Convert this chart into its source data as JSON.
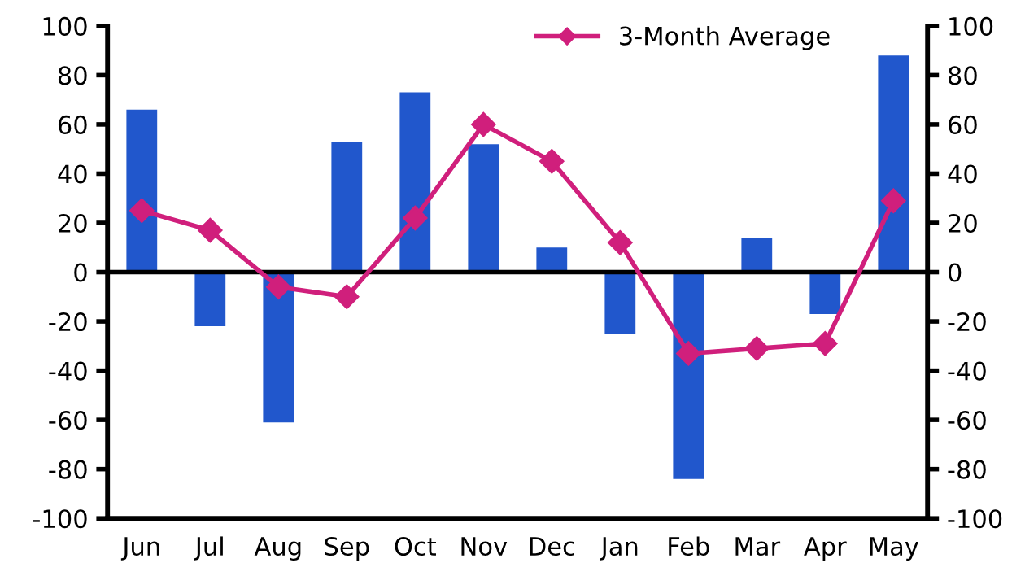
{
  "chart_data": {
    "type": "bar",
    "categories": [
      "Jun",
      "Jul",
      "Aug",
      "Sep",
      "Oct",
      "Nov",
      "Dec",
      "Jan",
      "Feb",
      "Mar",
      "Apr",
      "May"
    ],
    "series": [
      {
        "color": "#2157cc",
        "values": [
          66,
          -22,
          -61,
          53,
          73,
          52,
          10,
          -25,
          -84,
          14,
          -17,
          88
        ]
      },
      {
        "type": "line",
        "name": "3-Month Average",
        "color": "#d01f7c",
        "marker": "diamond",
        "values": [
          25,
          17,
          -6,
          -10,
          22,
          60,
          45,
          12,
          -33,
          -31,
          -29,
          29
        ]
      }
    ],
    "ylim": [
      -100,
      100
    ],
    "yticks": [
      -100,
      -80,
      -60,
      -40,
      -20,
      0,
      20,
      40,
      60,
      80,
      100
    ],
    "y2lim": [
      -100,
      100
    ],
    "y2ticks": [
      -100,
      -80,
      -60,
      -40,
      -20,
      0,
      20,
      40,
      60,
      80,
      100
    ],
    "ref_lines": [
      {
        "axis": "y",
        "value": 0,
        "color": "#000000"
      }
    ],
    "grid": false,
    "legend": "top right"
  }
}
